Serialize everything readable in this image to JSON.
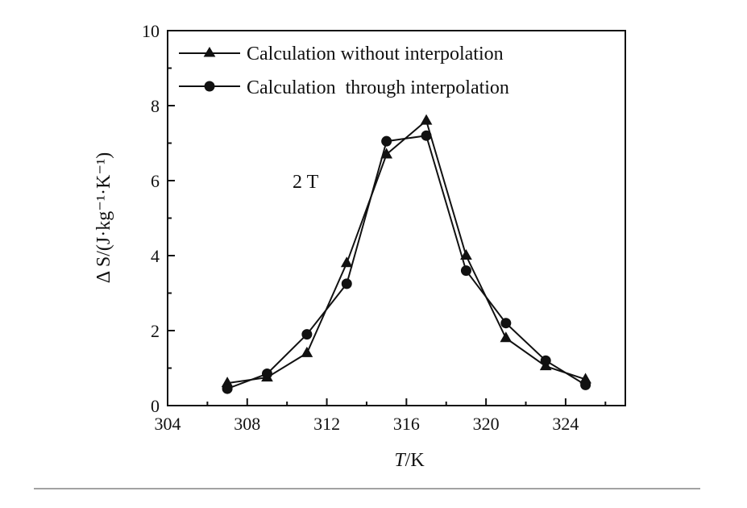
{
  "chart_data": {
    "type": "line",
    "xlabel_italic": "T",
    "xlabel_rest": "/K",
    "ylabel": "Δ S/(J·kg⁻¹·K⁻¹)",
    "xlim": [
      304,
      327
    ],
    "ylim": [
      0,
      10
    ],
    "xticks": [
      304,
      308,
      312,
      316,
      320,
      324
    ],
    "yticks": [
      0,
      2,
      4,
      6,
      8,
      10
    ],
    "grid": false,
    "legend_position": "top-left",
    "annotation": "2 T",
    "series": [
      {
        "name": "Calculation without interpolation",
        "marker": "triangle",
        "x": [
          307,
          309,
          311,
          313,
          315,
          317,
          319,
          321,
          323,
          325
        ],
        "y": [
          0.6,
          0.75,
          1.4,
          3.8,
          6.7,
          7.6,
          4.0,
          1.8,
          1.05,
          0.7
        ]
      },
      {
        "name": "Calculation  through interpolation",
        "marker": "circle",
        "x": [
          307,
          309,
          311,
          313,
          315,
          317,
          319,
          321,
          323,
          325
        ],
        "y": [
          0.45,
          0.85,
          1.9,
          3.25,
          7.05,
          7.2,
          3.6,
          2.2,
          1.2,
          0.55
        ]
      }
    ]
  }
}
